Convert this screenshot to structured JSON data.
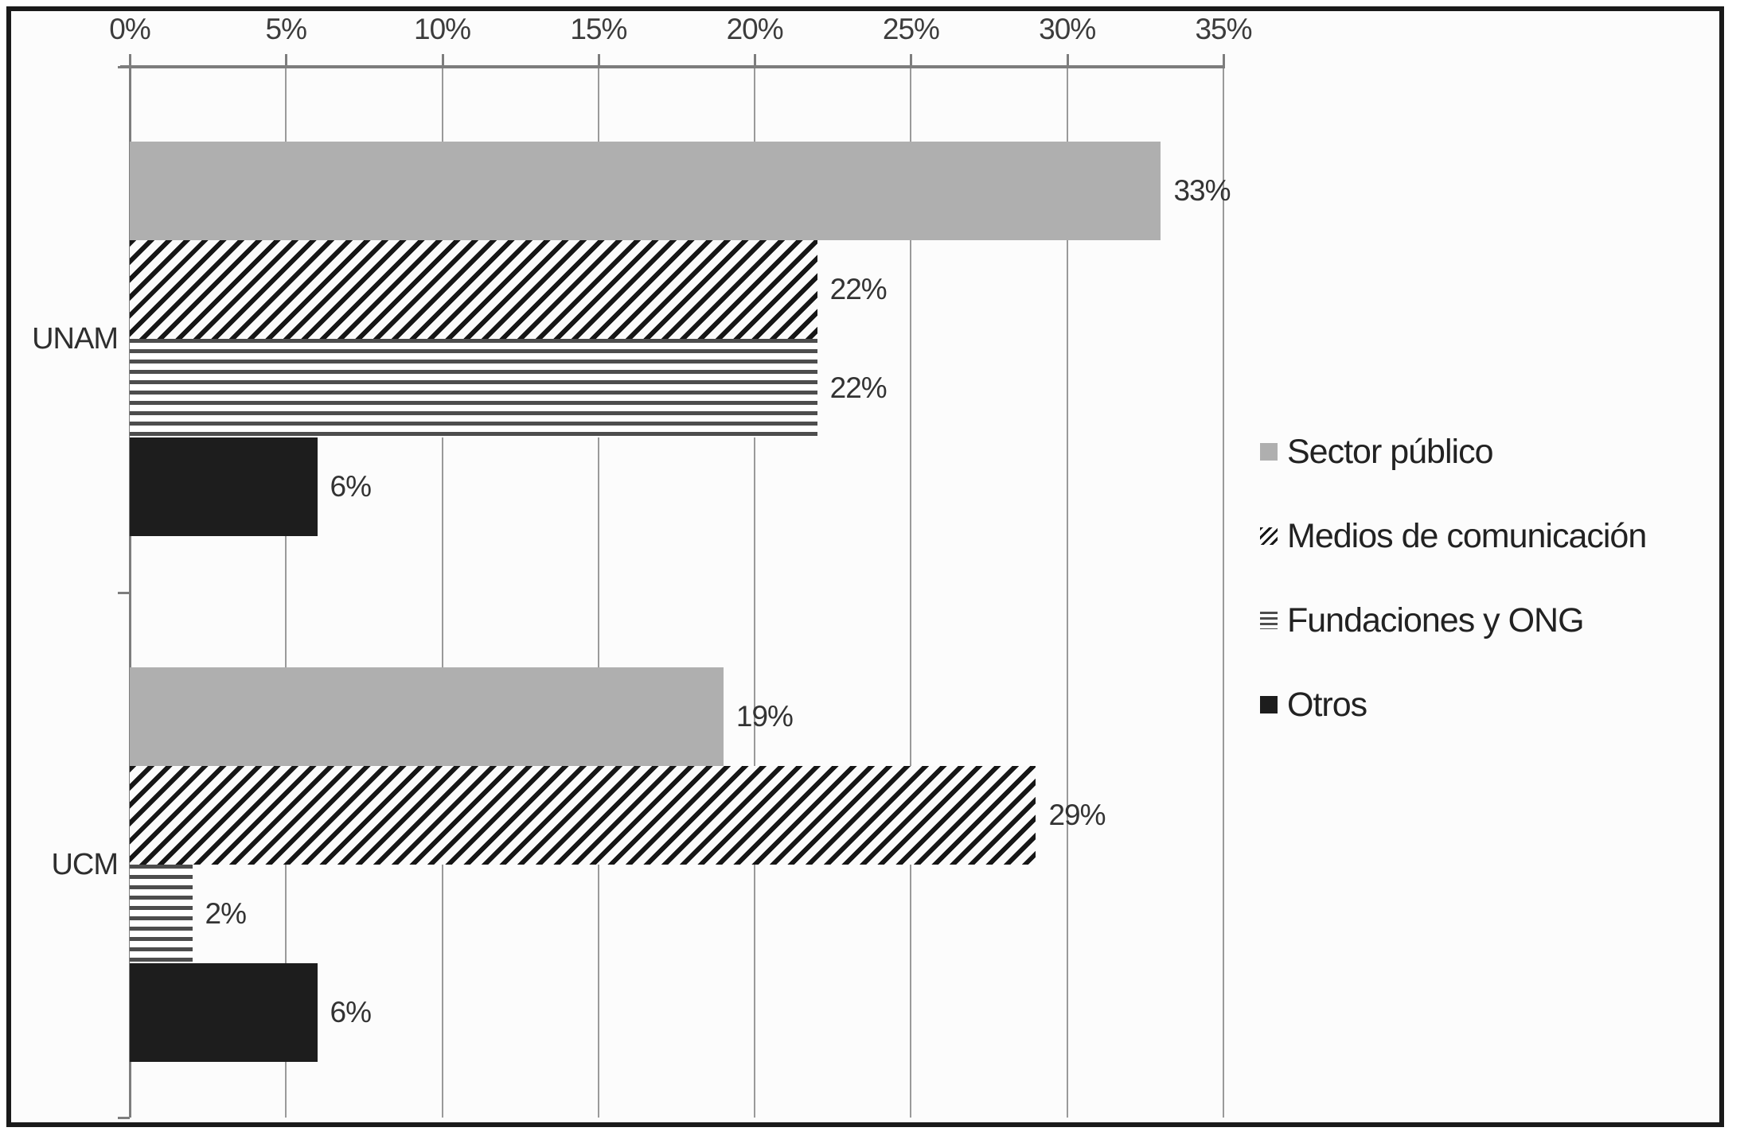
{
  "chart_data": {
    "type": "bar",
    "orientation": "horizontal",
    "title": "",
    "categories": [
      "UNAM",
      "UCM"
    ],
    "series": [
      {
        "key": "sector-publico",
        "name": "Sector público",
        "values": [
          33,
          19
        ]
      },
      {
        "key": "medios",
        "name": "Medios de comunicación",
        "values": [
          22,
          29
        ]
      },
      {
        "key": "fundaciones-ong",
        "name": "Fundaciones y ONG",
        "values": [
          22,
          2
        ]
      },
      {
        "key": "otros",
        "name": "Otros",
        "values": [
          6,
          6
        ]
      }
    ],
    "data_labels": [
      [
        "33%",
        "22%",
        "22%",
        "6%"
      ],
      [
        "19%",
        "29%",
        "2%",
        "6%"
      ]
    ],
    "value_axis": {
      "position": "top",
      "min": 0,
      "max": 35,
      "step": 5,
      "ticks": [
        "0%",
        "5%",
        "10%",
        "15%",
        "20%",
        "25%",
        "30%",
        "35%"
      ]
    },
    "grid": true,
    "legend_position": "right"
  },
  "colors": {
    "bar_gray": "#afafaf",
    "bar_black": "#1d1d1d",
    "hatch_dark": "#161616",
    "stripe_dark": "#4d4d4d",
    "gridline": "#9a9a9a",
    "axis": "#7d7d7d",
    "text": "#333333",
    "frame_border": "#1a1a1a",
    "background": "#fcfcfc"
  }
}
